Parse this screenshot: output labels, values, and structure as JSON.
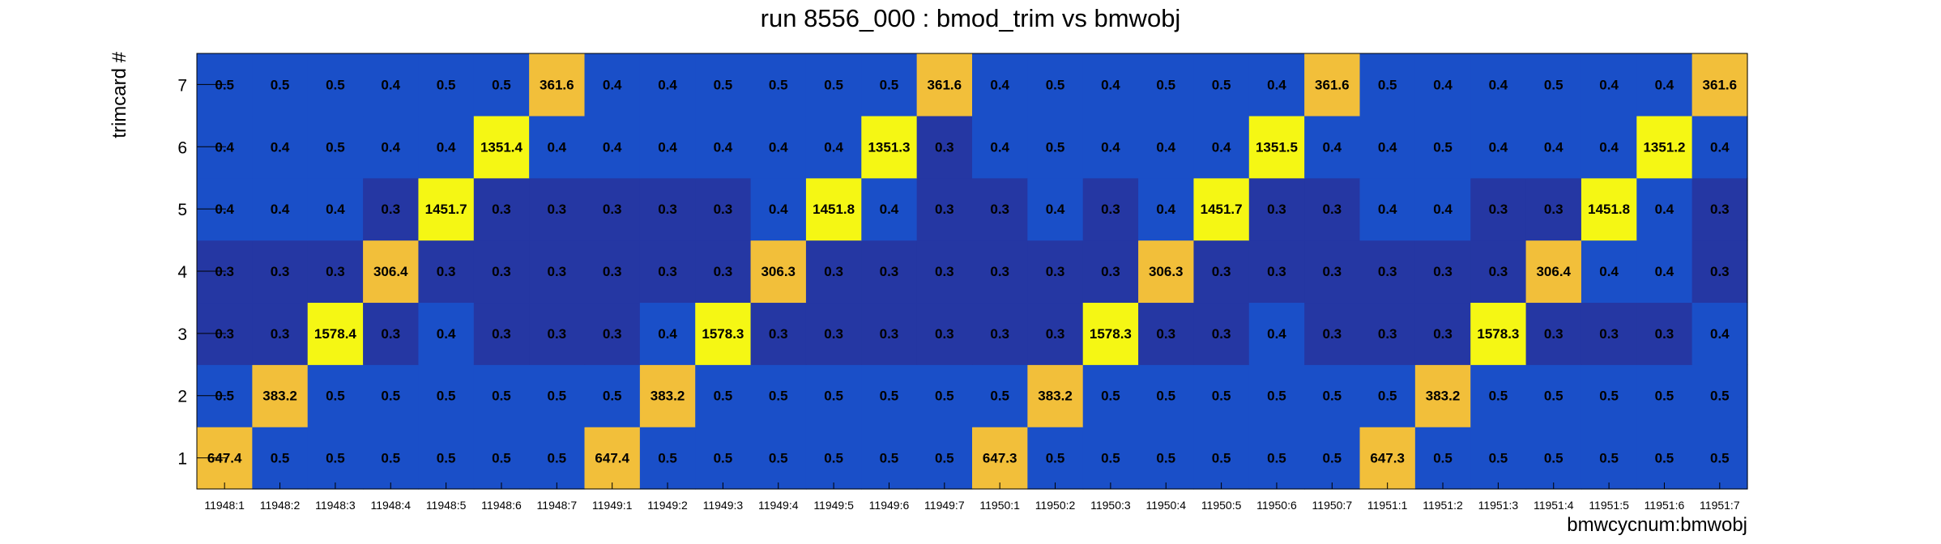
{
  "chart_data": {
    "type": "heatmap",
    "title": "run 8556_000 : bmod_trim vs bmwobj",
    "xlabel": "bmwcycnum:bmwobj",
    "ylabel": "trimcard #",
    "x_categories": [
      "11948:1",
      "11948:2",
      "11948:3",
      "11948:4",
      "11948:5",
      "11948:6",
      "11948:7",
      "11949:1",
      "11949:2",
      "11949:3",
      "11949:4",
      "11949:5",
      "11949:6",
      "11949:7",
      "11950:1",
      "11950:2",
      "11950:3",
      "11950:4",
      "11950:5",
      "11950:6",
      "11950:7",
      "11951:1",
      "11951:2",
      "11951:3",
      "11951:4",
      "11951:5",
      "11951:6",
      "11951:7"
    ],
    "y_categories": [
      "1",
      "2",
      "3",
      "4",
      "5",
      "6",
      "7"
    ],
    "values": [
      [
        647.4,
        0.5,
        0.5,
        0.5,
        0.5,
        0.5,
        0.5,
        647.4,
        0.5,
        0.5,
        0.5,
        0.5,
        0.5,
        0.5,
        647.3,
        0.5,
        0.5,
        0.5,
        0.5,
        0.5,
        0.5,
        647.3,
        0.5,
        0.5,
        0.5,
        0.5,
        0.5,
        0.5
      ],
      [
        0.5,
        383.2,
        0.5,
        0.5,
        0.5,
        0.5,
        0.5,
        0.5,
        383.2,
        0.5,
        0.5,
        0.5,
        0.5,
        0.5,
        0.5,
        383.2,
        0.5,
        0.5,
        0.5,
        0.5,
        0.5,
        0.5,
        383.2,
        0.5,
        0.5,
        0.5,
        0.5,
        0.5
      ],
      [
        0.3,
        0.3,
        1578.4,
        0.3,
        0.4,
        0.3,
        0.3,
        0.3,
        0.4,
        1578.3,
        0.3,
        0.3,
        0.3,
        0.3,
        0.3,
        0.3,
        1578.3,
        0.3,
        0.3,
        0.4,
        0.3,
        0.3,
        0.3,
        1578.3,
        0.3,
        0.3,
        0.3,
        0.4
      ],
      [
        0.3,
        0.3,
        0.3,
        306.4,
        0.3,
        0.3,
        0.3,
        0.3,
        0.3,
        0.3,
        306.3,
        0.3,
        0.3,
        0.3,
        0.3,
        0.3,
        0.3,
        306.3,
        0.3,
        0.3,
        0.3,
        0.3,
        0.3,
        0.3,
        306.4,
        0.4,
        0.4,
        0.3
      ],
      [
        0.4,
        0.4,
        0.4,
        0.3,
        1451.7,
        0.3,
        0.3,
        0.3,
        0.3,
        0.3,
        0.4,
        1451.8,
        0.4,
        0.3,
        0.3,
        0.4,
        0.3,
        0.4,
        1451.7,
        0.3,
        0.3,
        0.4,
        0.4,
        0.3,
        0.3,
        1451.8,
        0.4,
        0.3
      ],
      [
        0.4,
        0.4,
        0.5,
        0.4,
        0.4,
        1351.4,
        0.4,
        0.4,
        0.4,
        0.4,
        0.4,
        0.4,
        1351.3,
        0.3,
        0.4,
        0.5,
        0.4,
        0.4,
        0.4,
        1351.5,
        0.4,
        0.4,
        0.5,
        0.4,
        0.4,
        0.4,
        1351.2,
        0.4
      ],
      [
        0.5,
        0.5,
        0.5,
        0.4,
        0.5,
        0.5,
        361.6,
        0.4,
        0.4,
        0.5,
        0.5,
        0.5,
        0.5,
        361.6,
        0.4,
        0.5,
        0.4,
        0.5,
        0.5,
        0.4,
        361.6,
        0.5,
        0.4,
        0.4,
        0.5,
        0.4,
        0.4,
        361.6
      ]
    ],
    "colors": {
      "high": "#f5f714",
      "mid_high": "#f2bf3a",
      "low_a": "#1a4fc8",
      "low_b": "#2537a3"
    },
    "grid": false,
    "legend": "none"
  }
}
